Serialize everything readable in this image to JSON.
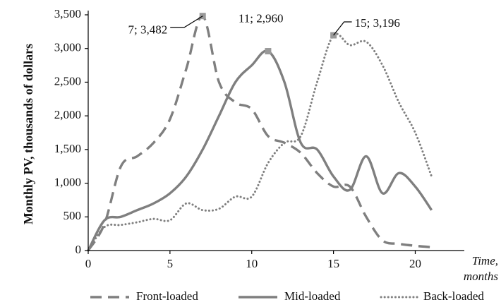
{
  "chart_data": {
    "type": "line",
    "title": "",
    "ylabel": "Monthly PV, thousands of dollars",
    "xlabel_lines": [
      "Time,",
      "months"
    ],
    "xlim": [
      0,
      23
    ],
    "ylim": [
      0,
      3500
    ],
    "xticks": [
      0,
      5,
      10,
      15,
      20
    ],
    "xtick_labels": [
      "0",
      "5",
      "10",
      "15",
      "20"
    ],
    "yticks": [
      0,
      500,
      1000,
      1500,
      2000,
      2500,
      3000,
      3500
    ],
    "ytick_labels": [
      "0",
      "500",
      "1,000",
      "1,500",
      "2,000",
      "2,500",
      "3,000",
      "3,500"
    ],
    "grid": false,
    "legend_position": "bottom",
    "series": [
      {
        "name": "Front-loaded",
        "style": "dashed",
        "color": "#7f7f7f",
        "x": [
          0,
          1,
          2,
          3,
          4,
          5,
          6,
          7,
          8,
          9,
          10,
          11,
          12,
          13,
          14,
          15,
          16,
          17,
          18,
          19,
          20,
          21
        ],
        "y": [
          0,
          400,
          1250,
          1400,
          1600,
          1950,
          2700,
          3482,
          2500,
          2200,
          2100,
          1700,
          1600,
          1450,
          1150,
          950,
          950,
          500,
          150,
          100,
          70,
          50
        ]
      },
      {
        "name": "Mid-loaded",
        "style": "solid",
        "color": "#7f7f7f",
        "x": [
          0,
          1,
          2,
          3,
          4,
          5,
          6,
          7,
          8,
          9,
          10,
          11,
          12,
          13,
          14,
          15,
          16,
          17,
          18,
          19,
          20,
          21
        ],
        "y": [
          0,
          450,
          500,
          600,
          700,
          850,
          1100,
          1500,
          2000,
          2500,
          2750,
          2960,
          2500,
          1600,
          1500,
          1100,
          900,
          1400,
          850,
          1150,
          950,
          600
        ]
      },
      {
        "name": "Back-loaded",
        "style": "dotted",
        "color": "#7f7f7f",
        "x": [
          0,
          1,
          2,
          3,
          4,
          5,
          6,
          7,
          8,
          9,
          10,
          11,
          12,
          13,
          14,
          15,
          16,
          17,
          18,
          19,
          20,
          21
        ],
        "y": [
          0,
          350,
          380,
          420,
          470,
          450,
          700,
          600,
          620,
          800,
          800,
          1300,
          1600,
          1700,
          2500,
          3196,
          3050,
          3100,
          2750,
          2200,
          1750,
          1100
        ]
      }
    ],
    "annotations": [
      {
        "x": 7,
        "y": 3482,
        "text": "7; 3,482"
      },
      {
        "x": 11,
        "y": 2960,
        "text": "11; 2,960"
      },
      {
        "x": 15,
        "y": 3196,
        "text": "15; 3,196"
      }
    ]
  },
  "colors": {
    "line": "#7f7f7f",
    "marker": "#999999",
    "axis": "#000000"
  }
}
